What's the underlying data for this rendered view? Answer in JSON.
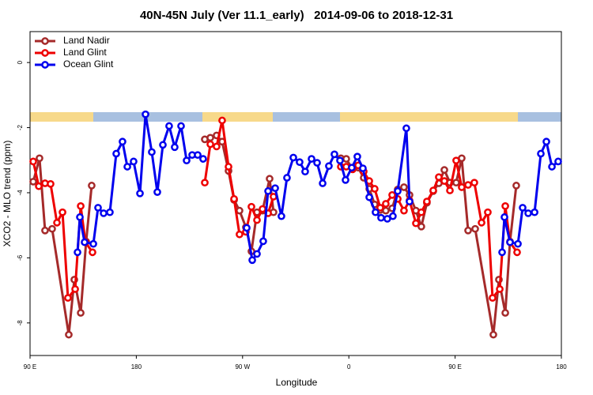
{
  "chart_data": {
    "type": "line",
    "title": "40N-45N July (Ver 11.1_early)   2014-09-06 to 2018-12-31",
    "x_label": "Longitude",
    "y_label": "XCO2 - MLO trend (ppm)",
    "xlim": [
      90,
      540
    ],
    "ylim": [
      -9,
      0.95
    ],
    "xticks": [
      {
        "value": 90,
        "label": "90 E"
      },
      180,
      {
        "value": 270,
        "label": "90 W"
      },
      0,
      {
        "value": 450,
        "label": "90 E"
      },
      {
        "value": 540,
        "label": "180"
      }
    ],
    "yticks": [
      -8,
      -6,
      -4,
      -2,
      0
    ],
    "legend": "top-left",
    "series": [
      {
        "name": "Land Nadir",
        "color": "#a52a2a",
        "x": [
          92.7,
          98,
          102.7,
          108.7,
          122.8,
          127.5,
          132.9,
          137.5,
          142.2,
          190,
          238,
          242.7,
          248,
          252.7,
          258.1,
          262.8,
          267.4,
          272.8,
          277.5,
          282.2,
          286.9,
          292.9,
          296.2,
          325,
          353.2,
          357.8,
          363.2,
          367.9,
          372.6,
          377.3,
          381.9,
          386.6,
          391.3,
          396.7,
          401.4,
          406.7,
          411.4,
          416.8,
          421.4,
          426.1,
          431.5,
          436.2,
          440.9,
          445.6,
          450.9,
          455.6,
          461,
          467,
          482.4,
          487.1,
          492.5,
          496.5,
          501.8
        ],
        "values": [
          -3.66,
          -2.94,
          -5.16,
          -5.11,
          -8.36,
          -6.67,
          -7.69,
          -5.5,
          -3.78,
          null,
          -2.36,
          -2.31,
          -2.24,
          -2.43,
          -3.33,
          -4.22,
          -4.55,
          -5.06,
          -5.8,
          -4.6,
          -4.55,
          -3.57,
          -4.6,
          null,
          -2.94,
          -2.96,
          -3.28,
          -3.23,
          -3.54,
          -3.88,
          -4.36,
          -4.53,
          -4.55,
          -4.48,
          -3.9,
          -3.83,
          -4.07,
          -4.55,
          -5.04,
          -4.31,
          -3.95,
          -3.71,
          -3.3,
          -3.69,
          -3.69,
          -2.94,
          -5.16,
          -5.11,
          -8.36,
          -6.67,
          -7.69,
          -5.5,
          -3.78
        ]
      },
      {
        "name": "Land Glint",
        "color": "#ee0000",
        "x": [
          92.7,
          97.4,
          102.7,
          107.4,
          112.8,
          117.5,
          122.1,
          128.2,
          132.9,
          136.9,
          142.9,
          190,
          238,
          242.7,
          248,
          252.7,
          258.1,
          262.8,
          267.4,
          272.8,
          277.5,
          282.2,
          286.9,
          291.6,
          296.2,
          325,
          353.2,
          357.8,
          363.2,
          367.9,
          372.6,
          377.3,
          381.9,
          386.6,
          391.3,
          396.7,
          401.4,
          406.7,
          411.4,
          416.8,
          421.4,
          426.1,
          431.5,
          436.2,
          440.9,
          445.6,
          450.9,
          455.6,
          461,
          466.3,
          472.4,
          477.7,
          481.7,
          487.8,
          492.5,
          496.5,
          502.5
        ],
        "values": [
          -3.04,
          -3.8,
          -3.71,
          -3.73,
          -4.92,
          -4.6,
          -7.23,
          -6.96,
          -4.41,
          -5.52,
          -5.83,
          null,
          -3.69,
          -2.51,
          -2.58,
          -1.78,
          -3.2,
          -4.19,
          -5.28,
          -5.2,
          -4.43,
          -4.84,
          -4.5,
          -4.63,
          -4.12,
          null,
          -3.2,
          -3.2,
          -3.28,
          -3.16,
          -3.35,
          -3.64,
          -3.88,
          -4.46,
          -4.34,
          -4.07,
          -4.19,
          -4.55,
          -4.24,
          -4.94,
          -4.6,
          -4.27,
          -3.93,
          -3.52,
          -3.64,
          -3.93,
          -3.01,
          -3.83,
          -3.76,
          -3.69,
          -4.92,
          -4.6,
          -7.23,
          -6.96,
          -4.41,
          -5.52,
          -5.83
        ]
      },
      {
        "name": "Ocean Glint",
        "color": "#0000ee",
        "x": [
          130.2,
          132.2,
          136.2,
          143.6,
          147.6,
          152.3,
          157.6,
          163,
          168.3,
          172.4,
          177.7,
          183.1,
          187.8,
          193.1,
          197.8,
          202.5,
          207.8,
          212.5,
          217.9,
          222.6,
          227.3,
          232,
          236.6,
          255,
          273.5,
          278.2,
          282.2,
          287.5,
          291.6,
          297.6,
          302.9,
          307.6,
          313,
          318.3,
          323,
          328.4,
          333.1,
          337.8,
          343.1,
          347.8,
          352.5,
          357.2,
          362.5,
          367.2,
          371.9,
          377.3,
          382.6,
          387.3,
          392.6,
          397.3,
          401.4,
          408.7,
          411.4,
          450,
          489.8,
          491.8,
          496.5,
          503.2,
          507.2,
          511.9,
          517.3,
          522.6,
          527.3,
          532,
          537.3
        ],
        "values": [
          -5.83,
          -4.75,
          -5.52,
          -5.57,
          -4.46,
          -4.63,
          -4.6,
          -2.8,
          -2.43,
          -3.2,
          -3.04,
          -4.02,
          -1.59,
          -2.75,
          -3.98,
          -2.53,
          -1.95,
          -2.6,
          -1.95,
          -3.01,
          -2.84,
          -2.84,
          -2.96,
          null,
          -5.08,
          -6.07,
          -5.88,
          -5.49,
          -3.95,
          -3.86,
          -4.72,
          -3.54,
          -2.92,
          -3.06,
          -3.35,
          -2.96,
          -3.08,
          -3.71,
          -3.18,
          -2.82,
          -3.01,
          -3.61,
          -3.23,
          -2.89,
          -3.25,
          -4.14,
          -4.6,
          -4.77,
          -4.8,
          -4.72,
          -3.95,
          -2.02,
          -4.27,
          null,
          -5.83,
          -4.75,
          -5.52,
          -5.57,
          -4.46,
          -4.63,
          -4.6,
          -2.8,
          -2.43,
          -3.2,
          -3.04
        ]
      }
    ]
  }
}
